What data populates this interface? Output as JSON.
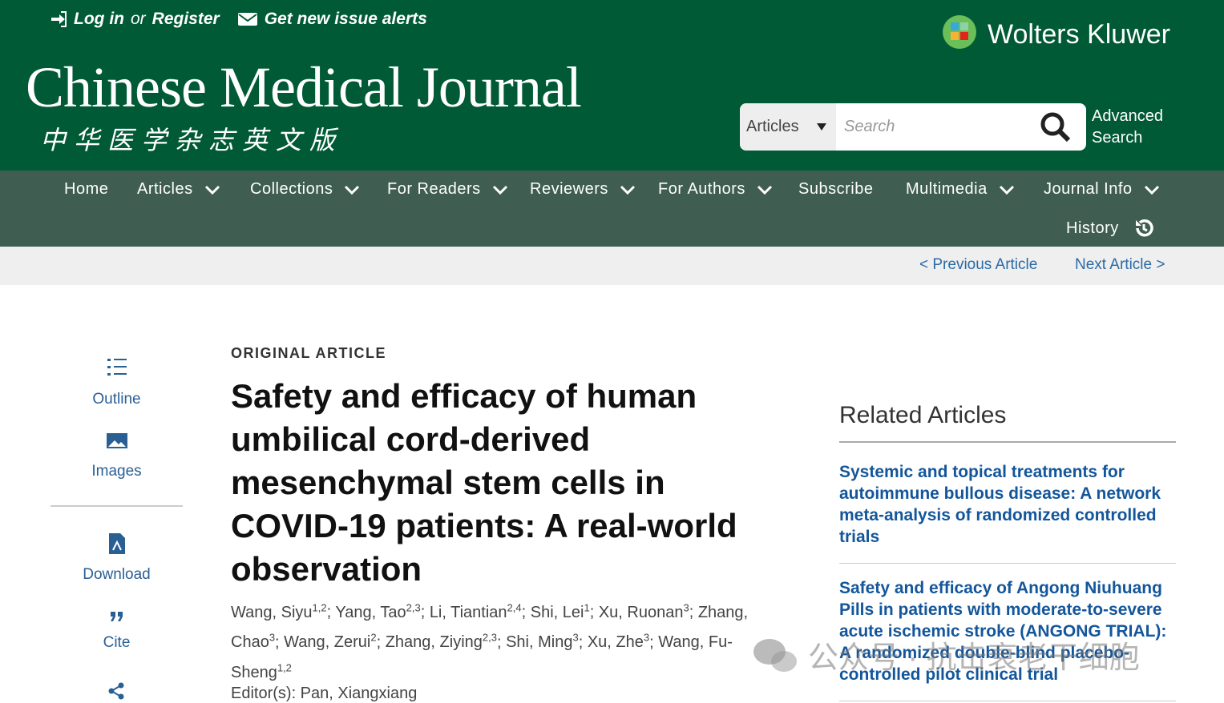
{
  "header": {
    "login": "Log in",
    "or": "or",
    "register": "Register",
    "alerts": "Get new issue alerts",
    "publisher": "Wolters Kluwer",
    "journal": "Chinese Medical Journal",
    "journal_cn": "中华医学杂志英文版",
    "search_scope": "Articles",
    "search_placeholder": "Search",
    "advanced_search": "Advanced Search"
  },
  "nav": {
    "items": [
      "Home",
      "Articles",
      "Collections",
      "For Readers",
      "Reviewers",
      "For Authors",
      "Subscribe",
      "Multimedia",
      "Journal Info"
    ],
    "history": "History"
  },
  "pager": {
    "previous": "< Previous Article",
    "next": "Next Article >"
  },
  "sidebar": {
    "outline": "Outline",
    "images": "Images",
    "download": "Download",
    "cite": "Cite"
  },
  "article": {
    "section": "ORIGINAL ARTICLE",
    "title": "Safety and efficacy of human umbilical cord-derived mesenchymal stem cells in COVID-19 patients: A real-world observation",
    "author_separator": "; ",
    "authors": [
      {
        "name": "Wang, Siyu",
        "sup": "1,2"
      },
      {
        "name": "Yang, Tao",
        "sup": "2,3"
      },
      {
        "name": "Li, Tiantian",
        "sup": "2,4"
      },
      {
        "name": "Shi, Lei",
        "sup": "1"
      },
      {
        "name": "Xu, Ruonan",
        "sup": "3"
      },
      {
        "name": "Zhang, Chao",
        "sup": "3"
      },
      {
        "name": "Wang, Zerui",
        "sup": "2"
      },
      {
        "name": "Zhang, Ziying",
        "sup": "2,3"
      },
      {
        "name": "Shi, Ming",
        "sup": "3"
      },
      {
        "name": "Xu, Zhe",
        "sup": "3"
      },
      {
        "name": "Wang, Fu-Sheng",
        "sup": "1,2"
      }
    ],
    "editor": "Editor(s): Pan, Xiangxiang"
  },
  "related": {
    "heading": "Related Articles",
    "items": [
      "Systemic and topical treatments for autoimmune bullous disease: A network meta-analysis of randomized controlled trials",
      "Safety and efficacy of Angong Niuhuang Pills in patients with moderate-to-severe acute ischemic stroke (ANGONG TRIAL): A randomized double-blind placebo-controlled pilot clinical trial"
    ]
  },
  "watermark": "公众号 · 抗击衰老干细胞"
}
